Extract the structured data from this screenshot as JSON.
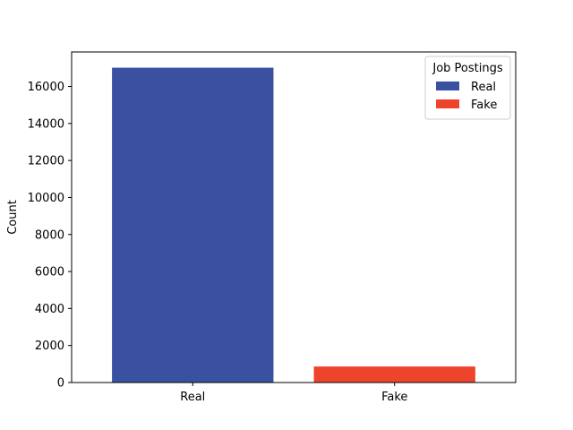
{
  "chart_data": {
    "type": "bar",
    "title": "",
    "xlabel": "",
    "ylabel": "Count",
    "categories": [
      "Real",
      "Fake"
    ],
    "values": [
      17014,
      866
    ],
    "colors": [
      "#3a50a1",
      "#ef442c"
    ],
    "ylim": [
      0,
      17865
    ],
    "yticks": [
      0,
      2000,
      4000,
      6000,
      8000,
      10000,
      12000,
      14000,
      16000
    ],
    "grid": false,
    "legend": {
      "title": "Job Postings",
      "placement": "top-right",
      "entries": [
        {
          "label": "Real",
          "color": "#3a50a1"
        },
        {
          "label": "Fake",
          "color": "#ef442c"
        }
      ]
    }
  }
}
